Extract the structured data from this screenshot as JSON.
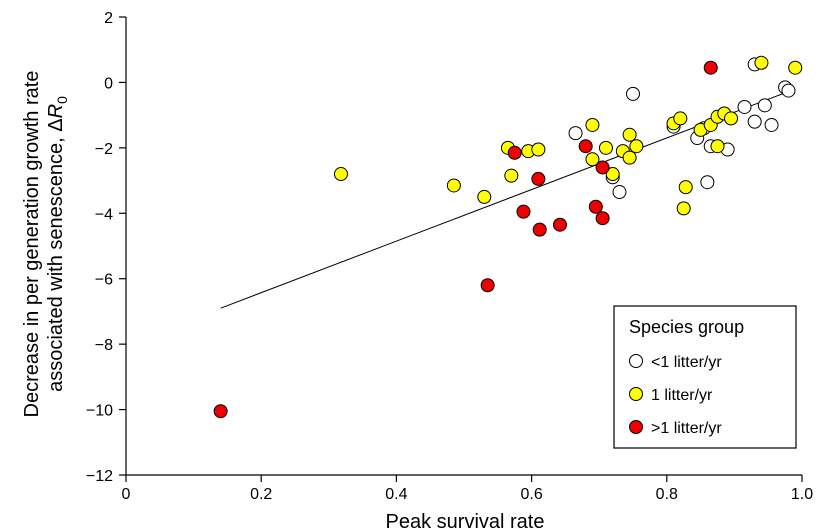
{
  "chart_data": {
    "type": "scatter",
    "xlabel": "Peak survival rate",
    "ylabel": {
      "line1": "Decrease in per generation growth rate",
      "line2_prefix": "associated with senescence, Δ",
      "line2_var": "R",
      "line2_sub": "0"
    },
    "xlim": [
      0,
      1.0
    ],
    "ylim": [
      -12,
      2
    ],
    "x_ticks": [
      {
        "value": 0,
        "label": "0"
      },
      {
        "value": 0.2,
        "label": "0.2"
      },
      {
        "value": 0.4,
        "label": "0.4"
      },
      {
        "value": 0.6,
        "label": "0.6"
      },
      {
        "value": 0.8,
        "label": "0.8"
      },
      {
        "value": 1.0,
        "label": "1.0"
      }
    ],
    "y_ticks": [
      {
        "value": 2,
        "label": "2"
      },
      {
        "value": 0,
        "label": "0"
      },
      {
        "value": -2,
        "label": "−2"
      },
      {
        "value": -4,
        "label": "−4"
      },
      {
        "value": -6,
        "label": "−6"
      },
      {
        "value": -8,
        "label": "−8"
      },
      {
        "value": -10,
        "label": "−10"
      },
      {
        "value": -12,
        "label": "−12"
      }
    ],
    "grid": false,
    "legend": {
      "title": "Species group",
      "placement": "bottom-right"
    },
    "fit_line": {
      "x": [
        0.14,
        0.99
      ],
      "y": [
        -6.9,
        -0.2
      ]
    },
    "series": [
      {
        "name": "<1 litter/yr",
        "color": "#ffffff",
        "points": [
          [
            0.665,
            -1.55
          ],
          [
            0.72,
            -2.9
          ],
          [
            0.73,
            -3.35
          ],
          [
            0.75,
            -0.35
          ],
          [
            0.81,
            -1.35
          ],
          [
            0.845,
            -1.7
          ],
          [
            0.855,
            -1.4
          ],
          [
            0.86,
            -3.05
          ],
          [
            0.865,
            -1.95
          ],
          [
            0.89,
            -2.05
          ],
          [
            0.915,
            -0.75
          ],
          [
            0.93,
            0.55
          ],
          [
            0.93,
            -1.2
          ],
          [
            0.945,
            -0.7
          ],
          [
            0.955,
            -1.3
          ],
          [
            0.975,
            -0.15
          ],
          [
            0.98,
            -0.25
          ]
        ]
      },
      {
        "name": "1 litter/yr",
        "color": "#ffff00",
        "points": [
          [
            0.318,
            -2.8
          ],
          [
            0.485,
            -3.15
          ],
          [
            0.53,
            -3.5
          ],
          [
            0.565,
            -2.0
          ],
          [
            0.57,
            -2.85
          ],
          [
            0.595,
            -2.1
          ],
          [
            0.61,
            -2.05
          ],
          [
            0.69,
            -1.3
          ],
          [
            0.69,
            -2.35
          ],
          [
            0.71,
            -2.0
          ],
          [
            0.72,
            -2.8
          ],
          [
            0.735,
            -2.1
          ],
          [
            0.745,
            -1.6
          ],
          [
            0.745,
            -2.3
          ],
          [
            0.755,
            -1.95
          ],
          [
            0.81,
            -1.25
          ],
          [
            0.82,
            -1.1
          ],
          [
            0.825,
            -3.85
          ],
          [
            0.828,
            -3.2
          ],
          [
            0.85,
            -1.45
          ],
          [
            0.865,
            -1.3
          ],
          [
            0.875,
            -1.05
          ],
          [
            0.875,
            -1.95
          ],
          [
            0.885,
            -0.95
          ],
          [
            0.895,
            -1.1
          ],
          [
            0.94,
            0.6
          ],
          [
            0.99,
            0.45
          ]
        ]
      },
      {
        "name": ">1 litter/yr",
        "color": "#ee0000",
        "points": [
          [
            0.14,
            -10.05
          ],
          [
            0.535,
            -6.2
          ],
          [
            0.575,
            -2.15
          ],
          [
            0.588,
            -3.95
          ],
          [
            0.61,
            -2.95
          ],
          [
            0.612,
            -4.5
          ],
          [
            0.642,
            -4.35
          ],
          [
            0.68,
            -1.95
          ],
          [
            0.695,
            -3.8
          ],
          [
            0.705,
            -4.15
          ],
          [
            0.705,
            -2.6
          ],
          [
            0.865,
            0.45
          ]
        ]
      }
    ]
  }
}
